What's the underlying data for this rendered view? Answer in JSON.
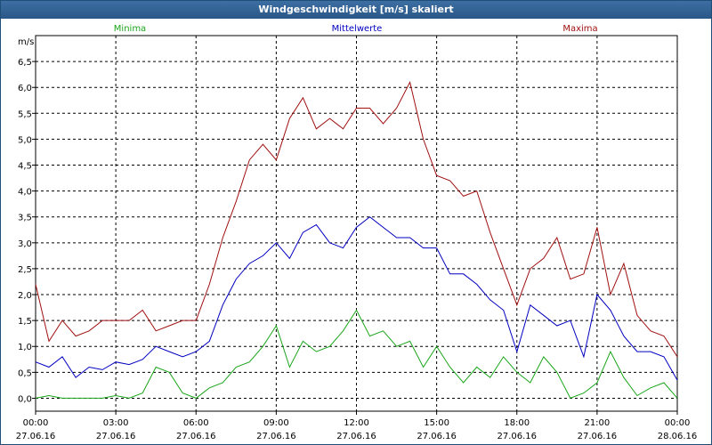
{
  "window": {
    "title": "Windgeschwindigkeit [m/s] skaliert"
  },
  "chart_data": {
    "type": "line",
    "title": "Windgeschwindigkeit [m/s] skaliert",
    "ylabel": "m/s",
    "xlabel": "",
    "ylim": [
      -0.25,
      7.0
    ],
    "xlim": [
      0,
      24
    ],
    "grid": true,
    "legend_placement": "top",
    "y_ticks": [
      "0,0",
      "0,5",
      "1,0",
      "1,5",
      "2,0",
      "2,5",
      "3,0",
      "3,5",
      "4,0",
      "4,5",
      "5,0",
      "5,5",
      "6,0",
      "6,5"
    ],
    "x_ticks": [
      {
        "time": "00:00",
        "date": "27.06.16"
      },
      {
        "time": "03:00",
        "date": "27.06.16"
      },
      {
        "time": "06:00",
        "date": "27.06.16"
      },
      {
        "time": "09:00",
        "date": "27.06.16"
      },
      {
        "time": "12:00",
        "date": "27.06.16"
      },
      {
        "time": "15:00",
        "date": "27.06.16"
      },
      {
        "time": "18:00",
        "date": "27.06.16"
      },
      {
        "time": "21:00",
        "date": "27.06.16"
      },
      {
        "time": "00:00",
        "date": "28.06.16"
      }
    ],
    "colors": {
      "Minima": "#1aa51a",
      "Mittelwerte": "#0000c0",
      "Maxima": "#a01010"
    },
    "series": [
      {
        "name": "Minima",
        "x": [
          0,
          0.5,
          1,
          1.5,
          2,
          2.5,
          3,
          3.5,
          4,
          4.5,
          5,
          5.5,
          6,
          6.5,
          7,
          7.5,
          8,
          8.5,
          9,
          9.5,
          10,
          10.5,
          11,
          11.5,
          12,
          12.5,
          13,
          13.5,
          14,
          14.5,
          15,
          15.5,
          16,
          16.5,
          17,
          17.5,
          18,
          18.5,
          19,
          19.5,
          20,
          20.5,
          21,
          21.5,
          22,
          22.5,
          23,
          23.5,
          24
        ],
        "values": [
          0.0,
          0.05,
          0.0,
          0.0,
          0.0,
          0.0,
          0.05,
          0.0,
          0.1,
          0.6,
          0.5,
          0.1,
          0.0,
          0.2,
          0.3,
          0.6,
          0.7,
          1.0,
          1.4,
          0.6,
          1.1,
          0.9,
          1.0,
          1.3,
          1.7,
          1.2,
          1.3,
          1.0,
          1.1,
          0.6,
          1.0,
          0.6,
          0.3,
          0.6,
          0.4,
          0.8,
          0.5,
          0.3,
          0.8,
          0.5,
          0.0,
          0.1,
          0.3,
          0.9,
          0.4,
          0.05,
          0.2,
          0.3,
          0.0
        ]
      },
      {
        "name": "Mittelwerte",
        "x": [
          0,
          0.5,
          1,
          1.5,
          2,
          2.5,
          3,
          3.5,
          4,
          4.5,
          5,
          5.5,
          6,
          6.5,
          7,
          7.5,
          8,
          8.5,
          9,
          9.5,
          10,
          10.5,
          11,
          11.5,
          12,
          12.5,
          13,
          13.5,
          14,
          14.5,
          15,
          15.5,
          16,
          16.5,
          17,
          17.5,
          18,
          18.5,
          19,
          19.5,
          20,
          20.5,
          21,
          21.5,
          22,
          22.5,
          23,
          23.5,
          24
        ],
        "values": [
          0.7,
          0.6,
          0.8,
          0.4,
          0.6,
          0.55,
          0.7,
          0.65,
          0.75,
          1.0,
          0.9,
          0.8,
          0.9,
          1.1,
          1.8,
          2.3,
          2.6,
          2.75,
          3.0,
          2.7,
          3.2,
          3.35,
          3.0,
          2.9,
          3.3,
          3.5,
          3.3,
          3.1,
          3.1,
          2.9,
          2.9,
          2.4,
          2.4,
          2.2,
          1.9,
          1.7,
          0.9,
          1.8,
          1.6,
          1.4,
          1.5,
          0.8,
          2.0,
          1.7,
          1.2,
          0.9,
          0.9,
          0.8,
          0.35
        ]
      },
      {
        "name": "Maxima",
        "x": [
          0,
          0.5,
          1,
          1.5,
          2,
          2.5,
          3,
          3.5,
          4,
          4.5,
          5,
          5.5,
          6,
          6.5,
          7,
          7.5,
          8,
          8.5,
          9,
          9.5,
          10,
          10.5,
          11,
          11.5,
          12,
          12.5,
          13,
          13.5,
          14,
          14.5,
          15,
          15.5,
          16,
          16.5,
          17,
          17.5,
          18,
          18.5,
          19,
          19.5,
          20,
          20.5,
          21,
          21.5,
          22,
          22.5,
          23,
          23.5,
          24
        ],
        "values": [
          2.2,
          1.1,
          1.5,
          1.2,
          1.3,
          1.5,
          1.5,
          1.5,
          1.7,
          1.3,
          1.4,
          1.5,
          1.5,
          2.2,
          3.1,
          3.8,
          4.6,
          4.9,
          4.6,
          5.4,
          5.8,
          5.2,
          5.4,
          5.2,
          5.6,
          5.6,
          5.3,
          5.6,
          6.1,
          5.0,
          4.3,
          4.2,
          3.9,
          4.0,
          3.2,
          2.5,
          1.8,
          2.5,
          2.7,
          3.1,
          2.3,
          2.4,
          3.3,
          2.0,
          2.6,
          1.6,
          1.3,
          1.2,
          0.8
        ]
      }
    ]
  }
}
